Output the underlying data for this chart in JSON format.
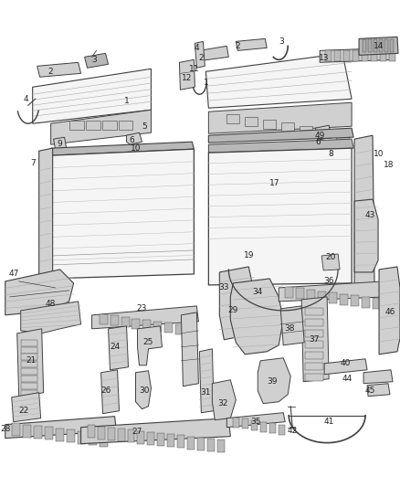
{
  "bg_color": "#ffffff",
  "line_color": "#404040",
  "label_color": "#222222",
  "label_fontsize": 6.5,
  "fill_light": "#e8e8e8",
  "fill_mid": "#d0d0d0",
  "fill_dark": "#b8b8b8",
  "fill_white": "#f5f5f5"
}
